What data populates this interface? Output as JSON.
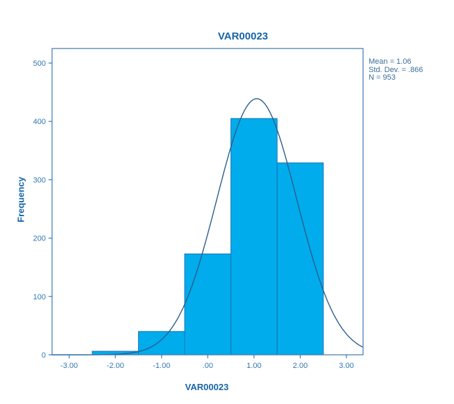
{
  "chart_data": {
    "type": "bar",
    "subtype": "histogram-with-normal-curve",
    "title": "VAR00023",
    "xlabel": "VAR00023",
    "ylabel": "Frequency",
    "bin_centers": [
      -2,
      -1,
      0,
      1,
      2
    ],
    "bin_width": 1,
    "counts": [
      6,
      40,
      173,
      405,
      329
    ],
    "x_ticks": [
      "-3.00",
      "-2.00",
      "-1.00",
      ".00",
      "1.00",
      "2.00",
      "3.00"
    ],
    "x_tick_values": [
      -3,
      -2,
      -1,
      0,
      1,
      2,
      3
    ],
    "y_ticks": [
      0,
      100,
      200,
      300,
      400,
      500
    ],
    "xlim": [
      -3.37,
      3.36
    ],
    "ylim": [
      0,
      525
    ],
    "grid": false,
    "legend": "none",
    "normal_curve": {
      "mean": 1.06,
      "sd": 0.866,
      "n": 953
    },
    "annotation": [
      "Mean = 1.06",
      "Std. Dev. = .866",
      "N = 953"
    ]
  },
  "colors": {
    "bar_fill": "#00ACEC",
    "bar_stroke": "#1473B4",
    "curve": "#2A5E8C",
    "axis": "#3B79AE",
    "label_text": "#1565A8",
    "tick_text": "#2F77B3",
    "stats_text": "#3A6E99",
    "background": "#ffffff"
  }
}
